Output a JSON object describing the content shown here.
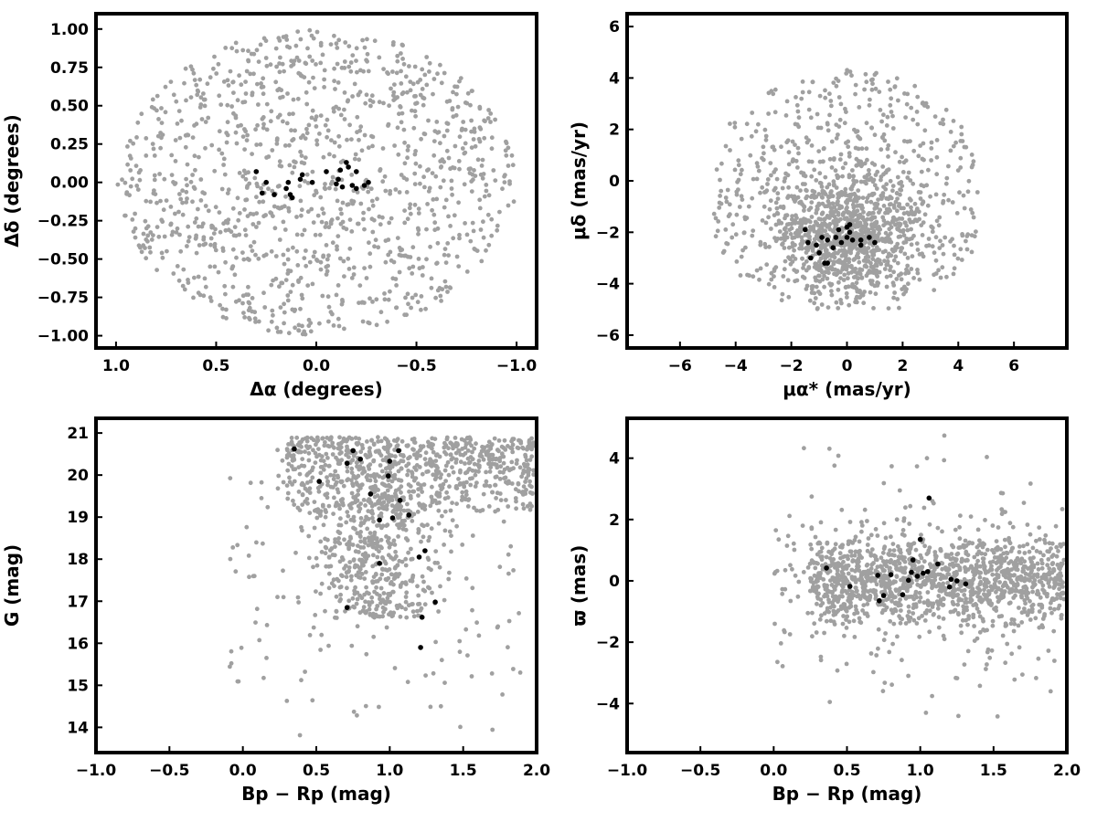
{
  "chart_data": [
    {
      "type": "scatter",
      "panel": "top-left",
      "xlabel": "Δα (degrees)",
      "ylabel": "Δδ (degrees)",
      "xlim": [
        1.1,
        -1.1
      ],
      "ylim": [
        -1.08,
        1.1
      ],
      "x_inverted": true,
      "xticks": [
        1.0,
        0.5,
        0.0,
        -0.5,
        -1.0
      ],
      "xtick_labels": [
        "1.0",
        "0.5",
        "0.0",
        "−0.5",
        "−1.0"
      ],
      "yticks": [
        1.0,
        0.75,
        0.5,
        0.25,
        0.0,
        -0.25,
        -0.5,
        -0.75,
        -1.0
      ],
      "ytick_labels": [
        "1.00",
        "0.75",
        "0.50",
        "0.25",
        "0.00",
        "−0.25",
        "−0.50",
        "−0.75",
        "−1.00"
      ],
      "grid": false,
      "background": {
        "color": "#a0a0a0",
        "n_points": 1200,
        "description": "field stars uniformly filling a circle of radius 1 degree",
        "center": [
          0,
          0
        ],
        "radius": 1.0
      },
      "members": {
        "color": "#000000",
        "points": [
          [
            0.3,
            0.07
          ],
          [
            0.25,
            0.0
          ],
          [
            0.27,
            -0.07
          ],
          [
            0.21,
            -0.08
          ],
          [
            0.15,
            -0.04
          ],
          [
            0.14,
            0.0
          ],
          [
            0.13,
            -0.08
          ],
          [
            0.12,
            -0.1
          ],
          [
            0.08,
            0.02
          ],
          [
            0.07,
            0.05
          ],
          [
            0.02,
            0.0
          ],
          [
            -0.05,
            0.07
          ],
          [
            -0.12,
            0.08
          ],
          [
            -0.11,
            0.02
          ],
          [
            -0.13,
            -0.03
          ],
          [
            -0.15,
            0.13
          ],
          [
            -0.16,
            0.1
          ],
          [
            -0.18,
            -0.02
          ],
          [
            -0.2,
            0.07
          ],
          [
            -0.2,
            -0.04
          ],
          [
            -0.24,
            -0.02
          ],
          [
            -0.26,
            0.0
          ],
          [
            -0.1,
            -0.01
          ]
        ]
      }
    },
    {
      "type": "scatter",
      "panel": "top-right",
      "xlabel": "μα* (mas/yr)",
      "ylabel": "μδ (mas/yr)",
      "xlim": [
        -7.9,
        7.9
      ],
      "ylim": [
        -6.5,
        6.5
      ],
      "xticks": [
        -6,
        -4,
        -2,
        0,
        2,
        4,
        6
      ],
      "xtick_labels": [
        "−6",
        "−4",
        "−2",
        "0",
        "2",
        "4",
        "6"
      ],
      "yticks": [
        -6,
        -4,
        -2,
        0,
        2,
        4,
        6
      ],
      "ytick_labels": [
        "−6",
        "−4",
        "−2",
        "0",
        "2",
        "4",
        "6"
      ],
      "grid": false,
      "background": {
        "color": "#a0a0a0",
        "n_points": 1500,
        "description": "field stars concentrated near (0,-2), spread x -5..5, y -5..5"
      },
      "members": {
        "color": "#000000",
        "points": [
          [
            -1.5,
            -1.9
          ],
          [
            -1.4,
            -2.4
          ],
          [
            -1.3,
            -3.0
          ],
          [
            -1.1,
            -2.5
          ],
          [
            -1.0,
            -2.8
          ],
          [
            -0.9,
            -2.2
          ],
          [
            -0.8,
            -3.2
          ],
          [
            -0.7,
            -2.3
          ],
          [
            -0.5,
            -2.6
          ],
          [
            -0.4,
            -2.2
          ],
          [
            -0.3,
            -1.9
          ],
          [
            -0.2,
            -2.4
          ],
          [
            0.0,
            -1.8
          ],
          [
            0.1,
            -1.7
          ],
          [
            0.0,
            -2.2
          ],
          [
            0.2,
            -2.3
          ],
          [
            0.5,
            -2.5
          ],
          [
            0.5,
            -2.3
          ],
          [
            0.8,
            -2.2
          ],
          [
            1.0,
            -2.4
          ],
          [
            -0.7,
            -3.2
          ],
          [
            0.1,
            -2.0
          ]
        ]
      }
    },
    {
      "type": "scatter",
      "panel": "bottom-left",
      "xlabel": "Bp − Rp (mag)",
      "ylabel": "G (mag)",
      "xlim": [
        -1.0,
        2.0
      ],
      "ylim": [
        13.4,
        21.35
      ],
      "xticks": [
        -1.0,
        -0.5,
        0.0,
        0.5,
        1.0,
        1.5,
        2.0
      ],
      "xtick_labels": [
        "−1.0",
        "−0.5",
        "0.0",
        "0.5",
        "1.0",
        "1.5",
        "2.0"
      ],
      "yticks": [
        14,
        15,
        16,
        17,
        18,
        19,
        20,
        21
      ],
      "ytick_labels": [
        "14",
        "15",
        "16",
        "17",
        "18",
        "19",
        "20",
        "21"
      ],
      "grid": false,
      "background": {
        "color": "#a0a0a0",
        "n_points": 1400,
        "description": "field stars; dense band at G 19-21 for Bp-Rp 0.3-2.0, main-sequence tongue down to G~16.5 near Bp-Rp 1.0, sparse bright stars to G~13.8"
      },
      "members": {
        "color": "#000000",
        "points": [
          [
            0.35,
            20.62
          ],
          [
            0.52,
            19.85
          ],
          [
            0.71,
            20.28
          ],
          [
            0.75,
            20.58
          ],
          [
            0.8,
            20.38
          ],
          [
            0.87,
            19.55
          ],
          [
            0.93,
            18.93
          ],
          [
            0.93,
            17.9
          ],
          [
            0.99,
            19.98
          ],
          [
            1.0,
            20.33
          ],
          [
            1.02,
            18.98
          ],
          [
            1.06,
            20.58
          ],
          [
            1.07,
            19.4
          ],
          [
            1.13,
            19.05
          ],
          [
            1.2,
            18.05
          ],
          [
            1.24,
            18.2
          ],
          [
            0.71,
            16.85
          ],
          [
            1.31,
            16.98
          ],
          [
            1.22,
            16.62
          ],
          [
            1.21,
            15.9
          ]
        ]
      }
    },
    {
      "type": "scatter",
      "panel": "bottom-right",
      "xlabel": "Bp − Rp (mag)",
      "ylabel": "ϖ (mas)",
      "xlim": [
        -1.0,
        2.0
      ],
      "ylim": [
        -5.6,
        5.3
      ],
      "xticks": [
        -1.0,
        -0.5,
        0.0,
        0.5,
        1.0,
        1.5,
        2.0
      ],
      "xtick_labels": [
        "−1.0",
        "−0.5",
        "0.0",
        "0.5",
        "1.0",
        "1.5",
        "2.0"
      ],
      "yticks": [
        -4,
        -2,
        0,
        2,
        4
      ],
      "ytick_labels": [
        "−4",
        "−2",
        "0",
        "2",
        "4"
      ],
      "grid": false,
      "background": {
        "color": "#a0a0a0",
        "n_points": 1500,
        "description": "field stars; dense horizontal band around parallax 0 for Bp-Rp 0.2-2.0, scatter -5..5"
      },
      "members": {
        "color": "#000000",
        "points": [
          [
            0.36,
            0.42
          ],
          [
            0.52,
            -0.18
          ],
          [
            0.71,
            0.18
          ],
          [
            0.72,
            -0.65
          ],
          [
            0.75,
            -0.48
          ],
          [
            0.8,
            0.2
          ],
          [
            0.88,
            -0.45
          ],
          [
            0.92,
            0.02
          ],
          [
            0.94,
            0.28
          ],
          [
            0.95,
            0.68
          ],
          [
            0.98,
            0.15
          ],
          [
            1.0,
            1.35
          ],
          [
            1.02,
            0.25
          ],
          [
            1.05,
            0.3
          ],
          [
            1.06,
            2.7
          ],
          [
            1.12,
            0.55
          ],
          [
            1.2,
            -0.2
          ],
          [
            1.21,
            0.05
          ],
          [
            1.25,
            0.0
          ],
          [
            1.31,
            -0.1
          ]
        ]
      }
    }
  ]
}
